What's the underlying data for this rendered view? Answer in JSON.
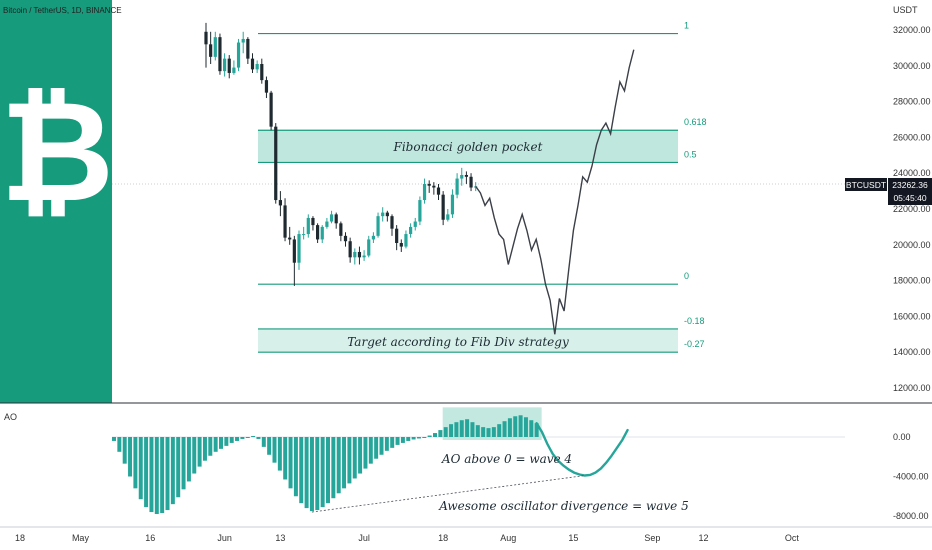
{
  "header": {
    "symbol_line": "Bitcoin / TetherUS, 1D, BINANCE",
    "currency": "USDT",
    "ao_label": "AO"
  },
  "logo": {
    "glyph": "₿",
    "bg": "#169b7c"
  },
  "price_tag": {
    "symbol": "BTCUSDT",
    "price": "23262.36",
    "countdown": "05:45:40",
    "value": 23262.36
  },
  "colors": {
    "up": "#26a69a",
    "down": "#1f2a30",
    "fib": "#169b7c",
    "box": "#b9e4d9",
    "ao": "#26a69a"
  },
  "fib_levels": [
    {
      "label": "1",
      "value": 31800
    },
    {
      "label": "0.618",
      "value": 26400
    },
    {
      "label": "0.5",
      "value": 24600
    },
    {
      "label": "0",
      "value": 17800
    },
    {
      "label": "-0.18",
      "value": 15300
    },
    {
      "label": "-0.27",
      "value": 14000
    }
  ],
  "annotations": {
    "golden_pocket": "Fibonacci golden pocket",
    "target": "Target according to Fib Div strategy",
    "ao_wave4": "AO above 0 = wave 4",
    "ao_divergence": "Awesome oscillator divergence = wave 5"
  },
  "chart_data": {
    "type": "candlestick",
    "x_ticks": [
      {
        "label": "18",
        "day": 0
      },
      {
        "label": "May",
        "day": 13
      },
      {
        "label": "16",
        "day": 28
      },
      {
        "label": "Jun",
        "day": 44
      },
      {
        "label": "13",
        "day": 56
      },
      {
        "label": "Jul",
        "day": 74
      },
      {
        "label": "18",
        "day": 91
      },
      {
        "label": "Aug",
        "day": 105
      },
      {
        "label": "15",
        "day": 119
      },
      {
        "label": "Sep",
        "day": 136
      },
      {
        "label": "12",
        "day": 147
      },
      {
        "label": "Oct",
        "day": 166
      }
    ],
    "y_ticks": [
      32000,
      30000,
      28000,
      26000,
      24000,
      22000,
      20000,
      18000,
      16000,
      14000,
      12000
    ],
    "y_tick_labels": [
      "32000.00",
      "30000.00",
      "28000.00",
      "26000.00",
      "24000.00",
      "22000.00",
      "20000.00",
      "18000.00",
      "16000.00",
      "14000.00",
      "12000.00"
    ],
    "ylim": [
      11000,
      33500
    ],
    "candles": [
      [
        40,
        31900,
        31200,
        29900,
        32400
      ],
      [
        41,
        31200,
        30500,
        30100,
        31900
      ],
      [
        42,
        30500,
        31600,
        30300,
        31900
      ],
      [
        43,
        31600,
        29700,
        29500,
        31800
      ],
      [
        44,
        29700,
        30400,
        29400,
        30700
      ],
      [
        45,
        30400,
        29600,
        29300,
        30600
      ],
      [
        46,
        29600,
        29900,
        29500,
        30300
      ],
      [
        47,
        29900,
        31300,
        29700,
        31500
      ],
      [
        48,
        31300,
        31500,
        30700,
        31900
      ],
      [
        49,
        31500,
        30400,
        30100,
        31600
      ],
      [
        50,
        30400,
        29800,
        29600,
        30700
      ],
      [
        51,
        29800,
        30100,
        29600,
        30300
      ],
      [
        52,
        30100,
        29200,
        29000,
        30400
      ],
      [
        53,
        29200,
        28500,
        28200,
        29400
      ],
      [
        54,
        28500,
        26600,
        26400,
        28600
      ],
      [
        55,
        26600,
        22500,
        22300,
        26800
      ],
      [
        56,
        22500,
        22200,
        21600,
        23000
      ],
      [
        57,
        22200,
        20400,
        20200,
        22600
      ],
      [
        58,
        20400,
        20300,
        20000,
        21000
      ],
      [
        59,
        20300,
        19000,
        17700,
        20500
      ],
      [
        60,
        19000,
        20600,
        18600,
        20800
      ],
      [
        61,
        20600,
        20600,
        20300,
        21000
      ],
      [
        62,
        20600,
        21500,
        20400,
        21700
      ],
      [
        63,
        21500,
        21100,
        20800,
        21600
      ],
      [
        64,
        21100,
        20300,
        20100,
        21200
      ],
      [
        65,
        20300,
        21000,
        20100,
        21100
      ],
      [
        66,
        21000,
        21300,
        20900,
        21500
      ],
      [
        67,
        21300,
        21700,
        21200,
        21900
      ],
      [
        68,
        21700,
        21200,
        20900,
        21800
      ],
      [
        69,
        21200,
        20500,
        20200,
        21300
      ],
      [
        70,
        20500,
        20200,
        19900,
        20700
      ],
      [
        71,
        20200,
        19300,
        19000,
        20400
      ],
      [
        72,
        19300,
        19600,
        18900,
        19800
      ],
      [
        73,
        19600,
        19300,
        18900,
        19900
      ],
      [
        74,
        19300,
        19400,
        19100,
        19700
      ],
      [
        75,
        19400,
        20300,
        19300,
        20500
      ],
      [
        76,
        20300,
        20500,
        20100,
        20700
      ],
      [
        77,
        20500,
        21600,
        20400,
        21800
      ],
      [
        78,
        21600,
        21800,
        21300,
        22100
      ],
      [
        79,
        21800,
        21600,
        21300,
        21900
      ],
      [
        80,
        21600,
        20900,
        20500,
        21700
      ],
      [
        81,
        20900,
        20100,
        19700,
        21100
      ],
      [
        82,
        20100,
        19900,
        19600,
        20300
      ],
      [
        83,
        19900,
        20600,
        19800,
        20800
      ],
      [
        84,
        20600,
        21000,
        20400,
        21200
      ],
      [
        85,
        21000,
        21300,
        20800,
        21500
      ],
      [
        86,
        21300,
        22500,
        21100,
        22700
      ],
      [
        87,
        22500,
        23400,
        22300,
        23700
      ],
      [
        88,
        23400,
        23300,
        22900,
        23600
      ],
      [
        89,
        23300,
        23200,
        22800,
        23500
      ],
      [
        90,
        23200,
        22800,
        22500,
        23400
      ],
      [
        91,
        22800,
        21400,
        21100,
        23000
      ],
      [
        92,
        21400,
        21700,
        21300,
        22000
      ],
      [
        93,
        21700,
        22800,
        21500,
        23100
      ],
      [
        94,
        22800,
        23700,
        22600,
        24000
      ],
      [
        95,
        23700,
        23900,
        23300,
        24300
      ],
      [
        96,
        23900,
        23800,
        23400,
        24100
      ],
      [
        97,
        23800,
        23200,
        23000,
        24000
      ],
      [
        98,
        23200,
        23262,
        23000,
        23500
      ]
    ],
    "projection": [
      [
        98,
        23262
      ],
      [
        99,
        22900
      ],
      [
        100,
        22200
      ],
      [
        101,
        22600
      ],
      [
        102,
        21500
      ],
      [
        103,
        20600
      ],
      [
        104,
        20300
      ],
      [
        105,
        18900
      ],
      [
        106,
        19900
      ],
      [
        107,
        20900
      ],
      [
        108,
        21700
      ],
      [
        109,
        20800
      ],
      [
        110,
        19700
      ],
      [
        111,
        20300
      ],
      [
        112,
        19200
      ],
      [
        113,
        17800
      ],
      [
        114,
        16900
      ],
      [
        115,
        15000
      ],
      [
        116,
        17000
      ],
      [
        117,
        16300
      ],
      [
        118,
        18600
      ],
      [
        119,
        20800
      ],
      [
        120,
        22200
      ],
      [
        121,
        23800
      ],
      [
        122,
        23500
      ],
      [
        123,
        24400
      ],
      [
        124,
        25600
      ],
      [
        125,
        26400
      ],
      [
        126,
        26800
      ],
      [
        127,
        26200
      ],
      [
        128,
        27700
      ],
      [
        129,
        29100
      ],
      [
        130,
        28600
      ],
      [
        131,
        29900
      ],
      [
        132,
        30900
      ]
    ],
    "ao": {
      "ylim": [
        -8500,
        3500
      ],
      "y_ticks": [
        0,
        -4000,
        -8000
      ],
      "y_tick_labels": [
        "0.00",
        "-4000.00",
        "-8000.00"
      ],
      "histogram": [
        [
          0,
          -400
        ],
        [
          1,
          -1500
        ],
        [
          2,
          -2700
        ],
        [
          3,
          -4000
        ],
        [
          4,
          -5200
        ],
        [
          5,
          -6300
        ],
        [
          6,
          -7100
        ],
        [
          7,
          -7600
        ],
        [
          8,
          -7800
        ],
        [
          9,
          -7700
        ],
        [
          10,
          -7400
        ],
        [
          11,
          -6800
        ],
        [
          12,
          -6100
        ],
        [
          13,
          -5300
        ],
        [
          14,
          -4500
        ],
        [
          15,
          -3700
        ],
        [
          16,
          -3000
        ],
        [
          17,
          -2400
        ],
        [
          18,
          -1900
        ],
        [
          19,
          -1500
        ],
        [
          20,
          -1200
        ],
        [
          21,
          -900
        ],
        [
          22,
          -600
        ],
        [
          23,
          -400
        ],
        [
          24,
          -200
        ],
        [
          25,
          -100
        ],
        [
          26,
          100
        ],
        [
          27,
          -200
        ],
        [
          28,
          -1000
        ],
        [
          29,
          -1800
        ],
        [
          30,
          -2600
        ],
        [
          31,
          -3400
        ],
        [
          32,
          -4300
        ],
        [
          33,
          -5200
        ],
        [
          34,
          -6000
        ],
        [
          35,
          -6700
        ],
        [
          36,
          -7200
        ],
        [
          37,
          -7500
        ],
        [
          38,
          -7400
        ],
        [
          39,
          -7100
        ],
        [
          40,
          -6700
        ],
        [
          41,
          -6200
        ],
        [
          42,
          -5700
        ],
        [
          43,
          -5200
        ],
        [
          44,
          -4700
        ],
        [
          45,
          -4200
        ],
        [
          46,
          -3700
        ],
        [
          47,
          -3200
        ],
        [
          48,
          -2700
        ],
        [
          49,
          -2200
        ],
        [
          50,
          -1800
        ],
        [
          51,
          -1400
        ],
        [
          52,
          -1100
        ],
        [
          53,
          -800
        ],
        [
          54,
          -600
        ],
        [
          55,
          -400
        ],
        [
          56,
          -250
        ],
        [
          57,
          -150
        ],
        [
          58,
          -50
        ],
        [
          59,
          150
        ],
        [
          60,
          400
        ],
        [
          61,
          700
        ],
        [
          62,
          1000
        ],
        [
          63,
          1300
        ],
        [
          64,
          1500
        ],
        [
          65,
          1700
        ],
        [
          66,
          1800
        ],
        [
          67,
          1500
        ],
        [
          68,
          1200
        ],
        [
          69,
          1000
        ],
        [
          70,
          900
        ],
        [
          71,
          1000
        ],
        [
          72,
          1300
        ],
        [
          73,
          1600
        ],
        [
          74,
          1900
        ],
        [
          75,
          2100
        ],
        [
          76,
          2200
        ],
        [
          77,
          2000
        ],
        [
          78,
          1700
        ],
        [
          79,
          1400
        ]
      ],
      "projection": [
        [
          79,
          1400
        ],
        [
          80,
          500
        ],
        [
          81,
          -700
        ],
        [
          82,
          -1700
        ],
        [
          83,
          -2400
        ],
        [
          84,
          -2900
        ],
        [
          85,
          -3300
        ],
        [
          86,
          -3600
        ],
        [
          87,
          -3800
        ],
        [
          88,
          -3900
        ],
        [
          89,
          -3850
        ],
        [
          90,
          -3600
        ],
        [
          91,
          -3200
        ],
        [
          92,
          -2600
        ],
        [
          93,
          -1900
        ],
        [
          94,
          -1100
        ],
        [
          95,
          -300
        ],
        [
          96,
          700
        ]
      ],
      "divergence_line": [
        [
          37,
          -7600
        ],
        [
          88,
          -3900
        ]
      ]
    }
  }
}
